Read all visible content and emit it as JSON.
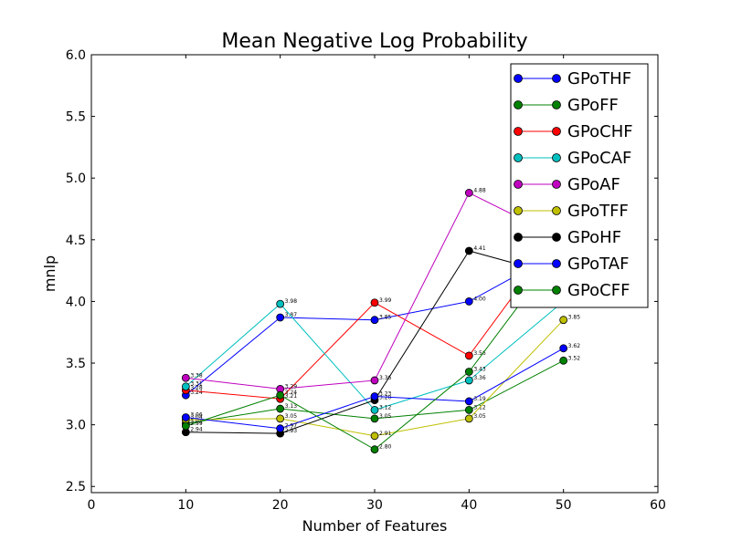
{
  "chart_data": {
    "type": "line",
    "title": "Mean Negative Log Probability",
    "xlabel": "Number of Features",
    "ylabel": "mnlp",
    "xlim": [
      0,
      60
    ],
    "ylim": [
      2.45,
      6.0
    ],
    "xticks": [
      0,
      10,
      20,
      30,
      40,
      50,
      60
    ],
    "yticks": [
      2.5,
      3.0,
      3.5,
      4.0,
      4.5,
      5.0,
      5.5,
      6.0
    ],
    "xtick_labels": [
      "0",
      "10",
      "20",
      "30",
      "40",
      "50",
      "60"
    ],
    "ytick_labels": [
      "2.5",
      "3.0",
      "3.5",
      "4.0",
      "4.5",
      "5.0",
      "5.5",
      "6.0"
    ],
    "legend_position": "top-right",
    "grid": false,
    "x": [
      10,
      20,
      30,
      40,
      50
    ],
    "series": [
      {
        "name": "GPoTHF",
        "color": "#0000ff",
        "values": [
          3.24,
          3.87,
          3.85,
          4.0,
          4.42
        ],
        "labels": [
          "3.24",
          "3.87",
          "3.85",
          "4.00",
          "4.42"
        ]
      },
      {
        "name": "GPoFF",
        "color": "#008000",
        "values": [
          3.01,
          3.13,
          3.05,
          3.12,
          3.52
        ],
        "labels": [
          "3.01",
          "3.13",
          "3.05",
          "3.12",
          "3.52"
        ]
      },
      {
        "name": "GPoCHF",
        "color": "#ff0000",
        "values": [
          3.28,
          3.21,
          3.99,
          3.56,
          4.6
        ],
        "labels": [
          "3.28",
          "3.21",
          "3.99",
          "3.56",
          "4.60"
        ]
      },
      {
        "name": "GPoCAF",
        "color": "#00bfbf",
        "values": [
          3.31,
          3.98,
          3.12,
          3.36,
          4.0
        ],
        "labels": [
          "3.31",
          "3.98",
          "3.12",
          "3.36",
          "4.00"
        ]
      },
      {
        "name": "GPoAF",
        "color": "#bf00bf",
        "values": [
          3.38,
          3.29,
          3.36,
          4.88,
          4.5
        ],
        "labels": [
          "3.38",
          "3.29",
          "3.36",
          "4.88",
          "4.50"
        ]
      },
      {
        "name": "GPoTFF",
        "color": "#bfbf00",
        "values": [
          3.04,
          3.05,
          2.91,
          3.05,
          3.85
        ],
        "labels": [
          "3.04",
          "3.05",
          "2.91",
          "3.05",
          "3.85"
        ]
      },
      {
        "name": "GPoHF",
        "color": "#000000",
        "values": [
          2.94,
          2.93,
          3.2,
          4.41,
          4.2
        ],
        "labels": [
          "2.94",
          "2.93",
          "3.20",
          "4.41",
          "4.20"
        ]
      },
      {
        "name": "GPoTAF",
        "color": "#0000ff",
        "values": [
          3.06,
          2.97,
          3.23,
          3.19,
          3.62
        ],
        "labels": [
          "3.06",
          "2.97",
          "3.23",
          "3.19",
          "3.62"
        ]
      },
      {
        "name": "GPoCFF",
        "color": "#008000",
        "values": [
          2.99,
          3.24,
          2.8,
          3.43,
          4.45
        ],
        "labels": [
          "2.99",
          "3.24",
          "2.80",
          "3.43",
          "4.45"
        ]
      }
    ]
  }
}
